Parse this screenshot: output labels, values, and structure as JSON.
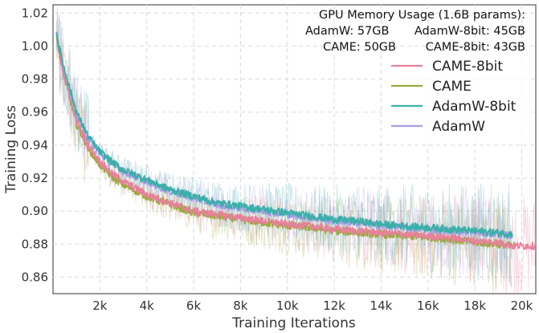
{
  "chart_data": {
    "type": "line",
    "title": "",
    "xlabel": "Training Iterations",
    "ylabel": "Training Loss",
    "xlim": [
      0,
      20600
    ],
    "ylim": [
      0.85,
      1.025
    ],
    "x_ticks": [
      2000,
      4000,
      6000,
      8000,
      10000,
      12000,
      14000,
      16000,
      18000,
      20000
    ],
    "x_tick_labels": [
      "2k",
      "4k",
      "6k",
      "8k",
      "10k",
      "12k",
      "14k",
      "16k",
      "18k",
      "20k"
    ],
    "y_ticks": [
      0.86,
      0.88,
      0.9,
      0.92,
      0.94,
      0.96,
      0.98,
      1.0,
      1.02
    ],
    "y_tick_labels": [
      "0.86",
      "0.88",
      "0.90",
      "0.92",
      "0.94",
      "0.96",
      "0.98",
      "1.00",
      "1.02"
    ],
    "grid": true,
    "legend_position": "top-right",
    "annotation": {
      "title": "GPU Memory Usage (1.6B params):",
      "entries": [
        "AdamW: 57GB",
        "AdamW-8bit: 45GB",
        "CAME: 50GB",
        "CAME-8bit: 43GB"
      ]
    },
    "series": [
      {
        "name": "CAME-8bit",
        "color": "#e8819b",
        "x": [
          0,
          200,
          500,
          1000,
          1500,
          2000,
          2500,
          3000,
          4000,
          5000,
          6000,
          7000,
          8000,
          9000,
          10000,
          11000,
          12000,
          13000,
          14000,
          15000,
          16000,
          17000,
          18000,
          19000,
          19600,
          20000,
          20600
        ],
        "values": [
          1.03,
          1.0,
          0.98,
          0.955,
          0.94,
          0.93,
          0.923,
          0.918,
          0.91,
          0.905,
          0.9,
          0.898,
          0.896,
          0.894,
          0.892,
          0.891,
          0.889,
          0.888,
          0.887,
          0.886,
          0.885,
          0.884,
          0.882,
          0.881,
          0.879,
          0.879,
          0.879
        ]
      },
      {
        "name": "CAME",
        "color": "#9aaa3c",
        "x": [
          0,
          200,
          500,
          1000,
          1500,
          2000,
          2500,
          3000,
          4000,
          5000,
          6000,
          7000,
          8000,
          9000,
          10000,
          11000,
          12000,
          13000,
          14000,
          15000,
          16000,
          17000,
          18000,
          19000,
          19600
        ],
        "values": [
          1.03,
          1.0,
          0.98,
          0.953,
          0.938,
          0.928,
          0.921,
          0.916,
          0.909,
          0.904,
          0.899,
          0.897,
          0.895,
          0.893,
          0.891,
          0.89,
          0.888,
          0.887,
          0.886,
          0.885,
          0.884,
          0.883,
          0.881,
          0.88,
          0.879
        ]
      },
      {
        "name": "AdamW-8bit",
        "color": "#3ab0a8",
        "x": [
          0,
          200,
          500,
          1000,
          1500,
          2000,
          2500,
          3000,
          4000,
          5000,
          6000,
          7000,
          8000,
          9000,
          10000,
          11000,
          12000,
          13000,
          14000,
          15000,
          16000,
          17000,
          18000,
          19000,
          19600
        ],
        "values": [
          1.03,
          1.003,
          0.985,
          0.96,
          0.945,
          0.936,
          0.93,
          0.925,
          0.919,
          0.913,
          0.909,
          0.905,
          0.903,
          0.901,
          0.899,
          0.897,
          0.895,
          0.894,
          0.892,
          0.891,
          0.89,
          0.889,
          0.888,
          0.887,
          0.886
        ]
      },
      {
        "name": "AdamW",
        "color": "#a99ee6",
        "x": [
          0,
          200,
          500,
          1000,
          1500,
          2000,
          2500,
          3000,
          4000,
          5000,
          6000,
          7000,
          8000,
          9000,
          10000,
          11000,
          12000,
          13000,
          14000,
          15000,
          16000,
          17000,
          18000,
          19000,
          19600
        ],
        "values": [
          1.03,
          1.003,
          0.984,
          0.959,
          0.944,
          0.935,
          0.929,
          0.924,
          0.918,
          0.912,
          0.908,
          0.904,
          0.902,
          0.9,
          0.898,
          0.896,
          0.894,
          0.893,
          0.891,
          0.89,
          0.889,
          0.888,
          0.887,
          0.886,
          0.885
        ]
      }
    ]
  }
}
